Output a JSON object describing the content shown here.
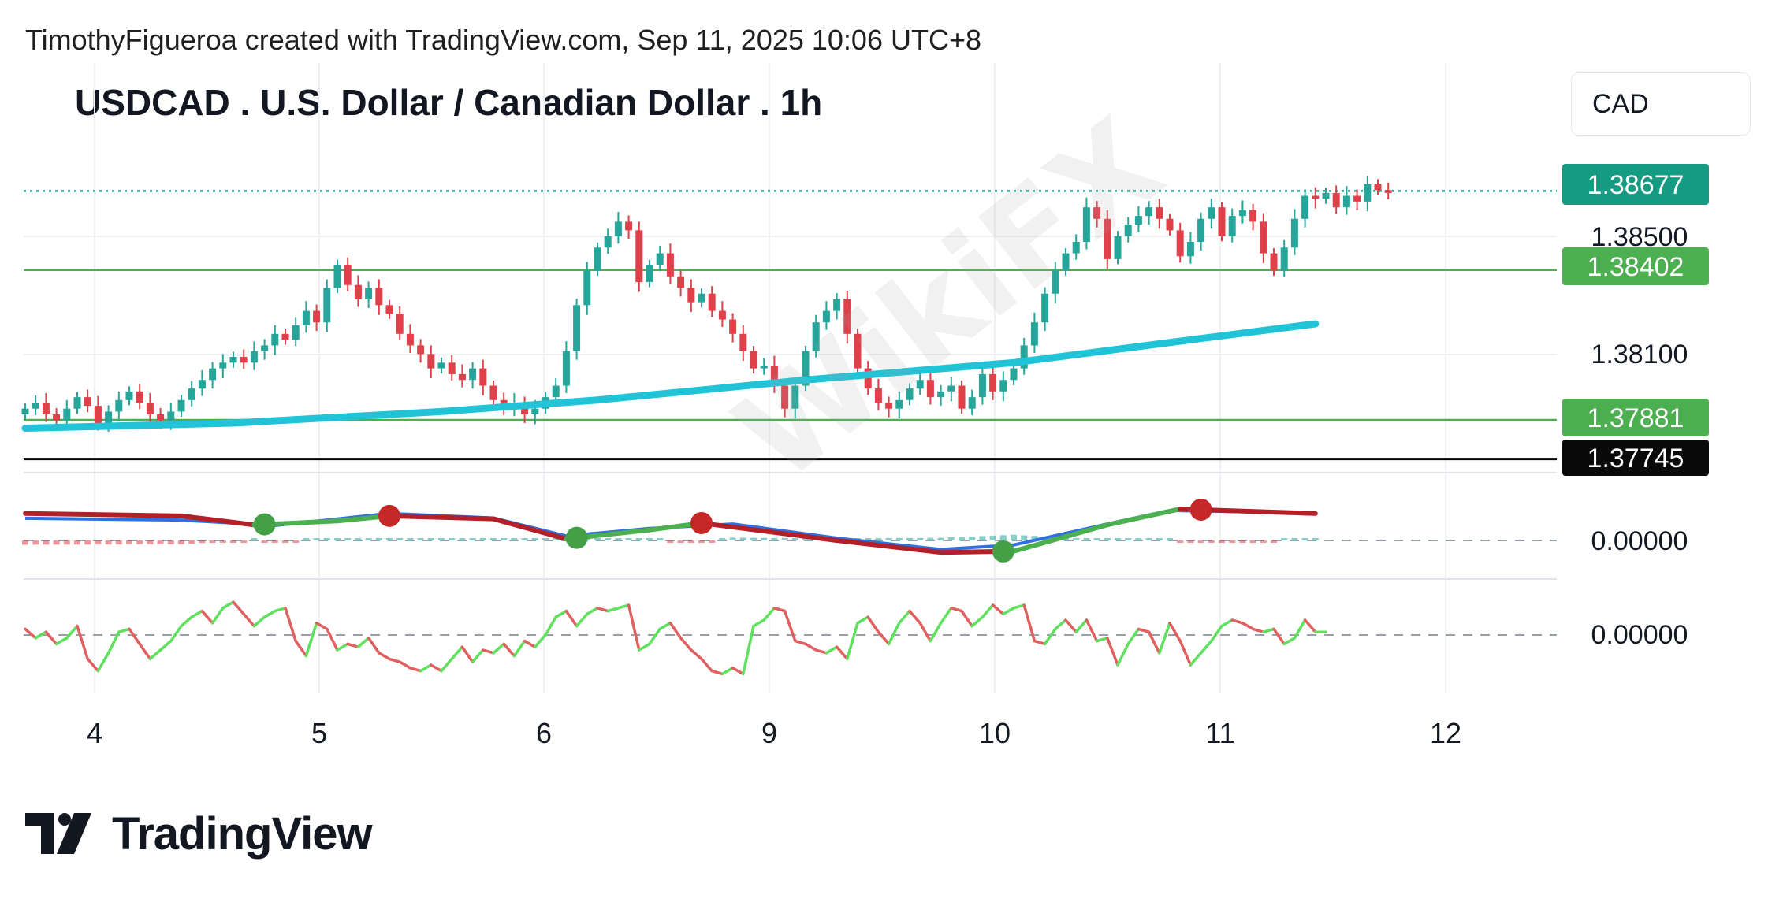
{
  "header": {
    "credit": "TimothyFigueroa created with TradingView.com, Sep 11, 2025 10:06 UTC+8",
    "title": "USDCAD . U.S. Dollar / Canadian Dollar . 1h",
    "currency": "CAD"
  },
  "brand": {
    "name": "TradingView"
  },
  "watermark": {
    "text": "WikiFX"
  },
  "colors": {
    "up": "#26a69a",
    "down": "#e0404a",
    "ma": "#20c4d6",
    "level_line": "#4caf50",
    "support_line": "#000000",
    "current_price_badge": "#159b82",
    "level_badge": "#4caf50",
    "support_badge": "#0a0a0a",
    "macd_fast": "#2f6fe0",
    "macd_signal": "#b32028",
    "osc_up": "#5fe05f",
    "osc_down": "#e06060"
  },
  "chart_data": {
    "type": "candlestick",
    "symbol": "USDCAD",
    "timeframe": "1h",
    "x_ticks": [
      "4",
      "5",
      "6",
      "9",
      "10",
      "11",
      "12"
    ],
    "price_axis": {
      "ticks": [
        "1.38500",
        "1.38100"
      ],
      "ylim": [
        1.3767,
        1.3893
      ]
    },
    "price_labels": {
      "current": "1.38677",
      "resistance": "1.38402",
      "support_upper": "1.37881",
      "support_lower": "1.37745"
    },
    "levels": [
      {
        "value": 1.38677,
        "style": "dotted",
        "role": "current price"
      },
      {
        "value": 1.38402,
        "style": "solid",
        "role": "resistance"
      },
      {
        "value": 1.37881,
        "style": "solid",
        "role": "support"
      },
      {
        "value": 1.37745,
        "style": "solid",
        "role": "support"
      }
    ],
    "closes": [
      1.3792,
      1.3794,
      1.379,
      1.3788,
      1.3792,
      1.3796,
      1.3793,
      1.3787,
      1.3791,
      1.3795,
      1.3798,
      1.3794,
      1.379,
      1.3788,
      1.3791,
      1.3795,
      1.3799,
      1.3802,
      1.3806,
      1.3808,
      1.381,
      1.3808,
      1.3812,
      1.3814,
      1.3818,
      1.3816,
      1.3821,
      1.3826,
      1.3822,
      1.3834,
      1.3842,
      1.3835,
      1.383,
      1.3834,
      1.3828,
      1.3825,
      1.3818,
      1.3814,
      1.3811,
      1.3806,
      1.3808,
      1.3804,
      1.3802,
      1.3806,
      1.38,
      1.3795,
      1.3792,
      1.3794,
      1.379,
      1.3792,
      1.3796,
      1.38,
      1.3812,
      1.3828,
      1.384,
      1.3848,
      1.3852,
      1.3857,
      1.3854,
      1.3836,
      1.3842,
      1.3846,
      1.3838,
      1.3834,
      1.3829,
      1.3832,
      1.3826,
      1.3823,
      1.3818,
      1.3812,
      1.3806,
      1.3807,
      1.38,
      1.3792,
      1.38,
      1.3812,
      1.3822,
      1.3826,
      1.383,
      1.3818,
      1.3806,
      1.3799,
      1.3794,
      1.3792,
      1.3795,
      1.3799,
      1.3802,
      1.3796,
      1.3798,
      1.38,
      1.3792,
      1.3796,
      1.3804,
      1.3798,
      1.3802,
      1.3806,
      1.3814,
      1.3822,
      1.3832,
      1.384,
      1.3846,
      1.385,
      1.3862,
      1.3858,
      1.3844,
      1.3852,
      1.3856,
      1.3859,
      1.3862,
      1.3858,
      1.3854,
      1.3845,
      1.385,
      1.3858,
      1.3862,
      1.3852,
      1.3859,
      1.3861,
      1.3857,
      1.3846,
      1.384,
      1.3848,
      1.3858,
      1.3866,
      1.3865,
      1.3867,
      1.3862,
      1.3866,
      1.3864,
      1.387,
      1.3868,
      1.3867
    ],
    "moving_average": {
      "points": [
        [
          0,
          1.37852
        ],
        [
          20,
          1.3787
        ],
        [
          40,
          1.3791
        ],
        [
          55,
          1.3795
        ],
        [
          75,
          1.3802
        ],
        [
          95,
          1.3808
        ],
        [
          110,
          1.3815
        ],
        [
          124,
          1.38215
        ]
      ]
    },
    "macd": {
      "zero_label": "0.00000",
      "fast": [
        [
          0,
          0.74
        ],
        [
          15,
          0.68
        ],
        [
          24,
          0.5
        ],
        [
          35,
          0.9
        ],
        [
          45,
          0.75
        ],
        [
          52,
          0.15
        ],
        [
          60,
          0.4
        ],
        [
          68,
          0.55
        ],
        [
          78,
          0.08
        ],
        [
          88,
          -0.3
        ],
        [
          95,
          -0.15
        ],
        [
          104,
          0.55
        ],
        [
          110,
          1.0
        ],
        [
          124,
          0.92
        ]
      ],
      "signal": [
        [
          0,
          0.9
        ],
        [
          15,
          0.82
        ],
        [
          22,
          0.52
        ],
        [
          30,
          0.65
        ],
        [
          35,
          0.82
        ],
        [
          45,
          0.72
        ],
        [
          52,
          0.05
        ],
        [
          60,
          0.35
        ],
        [
          65,
          0.58
        ],
        [
          78,
          0.0
        ],
        [
          88,
          -0.4
        ],
        [
          95,
          -0.36
        ],
        [
          104,
          0.52
        ],
        [
          111,
          1.05
        ],
        [
          124,
          0.9
        ]
      ],
      "crossovers": [
        {
          "x": 23,
          "type": "bullish"
        },
        {
          "x": 35,
          "type": "bearish"
        },
        {
          "x": 53,
          "type": "bullish"
        },
        {
          "x": 65,
          "type": "bearish"
        },
        {
          "x": 94,
          "type": "bullish"
        },
        {
          "x": 113,
          "type": "bearish"
        }
      ]
    },
    "oscillator": {
      "zero_label": "0.00000",
      "values": [
        0.2,
        -0.1,
        0.1,
        -0.3,
        -0.1,
        0.3,
        -0.8,
        -1.2,
        -0.6,
        0.1,
        0.2,
        -0.3,
        -0.8,
        -0.5,
        -0.2,
        0.3,
        0.6,
        0.8,
        0.4,
        0.9,
        1.1,
        0.7,
        0.3,
        0.6,
        0.8,
        0.9,
        -0.2,
        -0.7,
        0.4,
        0.2,
        -0.5,
        -0.3,
        -0.4,
        -0.1,
        -0.6,
        -0.8,
        -0.9,
        -1.1,
        -1.2,
        -1.0,
        -1.2,
        -0.8,
        -0.4,
        -0.9,
        -0.5,
        -0.6,
        -0.3,
        -0.7,
        -0.2,
        -0.4,
        0.0,
        0.6,
        0.8,
        0.3,
        0.7,
        0.9,
        0.8,
        0.9,
        1.0,
        -0.5,
        -0.3,
        0.2,
        0.4,
        -0.1,
        -0.5,
        -0.8,
        -1.2,
        -1.3,
        -1.1,
        -1.3,
        0.3,
        0.5,
        0.9,
        0.8,
        -0.2,
        -0.3,
        -0.5,
        -0.6,
        -0.4,
        -0.8,
        0.4,
        0.6,
        0.1,
        -0.3,
        0.4,
        0.8,
        0.4,
        -0.2,
        0.4,
        0.9,
        0.8,
        0.3,
        0.6,
        1.0,
        0.7,
        0.9,
        1.0,
        -0.2,
        -0.3,
        0.2,
        0.5,
        0.1,
        0.5,
        -0.2,
        -0.1,
        -1.0,
        -0.3,
        0.2,
        0.1,
        -0.6,
        0.4,
        -0.2,
        -1.0,
        -0.6,
        -0.2,
        0.3,
        0.5,
        0.4,
        0.2,
        0.1,
        0.2,
        -0.3,
        -0.1,
        0.5,
        0.1,
        0.1
      ]
    }
  }
}
